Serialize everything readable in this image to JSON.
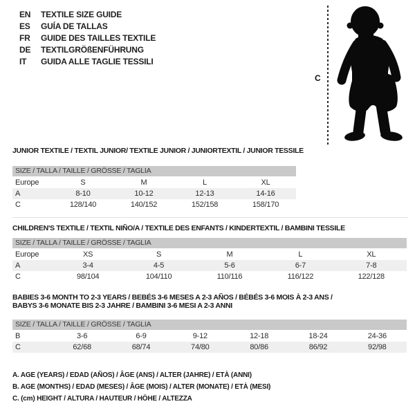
{
  "header": {
    "languages": [
      {
        "code": "EN",
        "title": "TEXTILE SIZE GUIDE"
      },
      {
        "code": "ES",
        "title": "GUÍA DE TALLAS"
      },
      {
        "code": "FR",
        "title": "GUIDE DES TAILLES TEXTILE"
      },
      {
        "code": "DE",
        "title": "TEXTILGRÖßENFÜHRUNG"
      },
      {
        "code": "IT",
        "title": "GUIDA ALLE TAGLIE TESSILI"
      }
    ]
  },
  "figure": {
    "icon": "baby-silhouette",
    "measure_label": "C"
  },
  "tables": [
    {
      "id": "junior",
      "title_lines": [
        "JUNIOR TEXTILE / TEXTIL JUNIOR/ TEXTILE JUNIOR / JUNIORTEXTIL / JUNIOR TESSILE"
      ],
      "size_header": "SIZE / TALLA / TAILLE / GRÖSSE / TAGLIA",
      "rows": [
        {
          "label": "Europe",
          "shaded": false,
          "values": [
            "S",
            "M",
            "L",
            "XL"
          ]
        },
        {
          "label": "A",
          "shaded": true,
          "values": [
            "8-10",
            "10-12",
            "12-13",
            "14-16"
          ]
        },
        {
          "label": "C",
          "shaded": false,
          "values": [
            "128/140",
            "140/152",
            "152/158",
            "158/170"
          ]
        }
      ]
    },
    {
      "id": "children",
      "title_lines": [
        "CHILDREN'S TEXTILE / TEXTIL NIÑO/A / TEXTILE DES ENFANTS / KINDERTEXTIL / BAMBINI TESSILE"
      ],
      "size_header": "SIZE / TALLA / TAILLE / GRÖSSE / TAGLIA",
      "rows": [
        {
          "label": "Europe",
          "shaded": false,
          "values": [
            "XS",
            "S",
            "M",
            "L",
            "XL"
          ]
        },
        {
          "label": "A",
          "shaded": true,
          "values": [
            "3-4",
            "4-5",
            "5-6",
            "6-7",
            "7-8"
          ]
        },
        {
          "label": "C",
          "shaded": false,
          "values": [
            "98/104",
            "104/110",
            "110/116",
            "116/122",
            "122/128"
          ]
        }
      ]
    },
    {
      "id": "babies",
      "title_lines": [
        "BABIES 3-6 MONTH TO 2-3 YEARS / BEBÉS 3-6 MESES A 2-3 AÑOS / BÉBÉS 3-6 MOIS À 2-3 ANS /",
        "BABYS 3-6 MONATE BIS 2-3 JAHRE / BAMBINI 3-6 MESI A 2-3 ANNI"
      ],
      "size_header": "SIZE / TALLA / TAILLE / GRÖSSE / TAGLIA",
      "rows": [
        {
          "label": "B",
          "shaded": false,
          "values": [
            "3-6",
            "6-9",
            "9-12",
            "12-18",
            "18-24",
            "24-36"
          ]
        },
        {
          "label": "C",
          "shaded": true,
          "values": [
            "62/68",
            "68/74",
            "74/80",
            "80/86",
            "86/92",
            "92/98"
          ]
        }
      ]
    }
  ],
  "legend": [
    "A. AGE (YEARS) / EDAD (AÑOS) / ÂGE (ANS) / ALTER (JAHRE) / ETÀ (ANNI)",
    "B. AGE (MONTHS) / EDAD (MESES) / ÂGE (MOIS) / ALTER (MONATE) / ETÀ (MESI)",
    "C. (cm) HEIGHT / ALTURA / HAUTEUR / HÖHE / ALTEZZA"
  ],
  "colors": {
    "header_bar": "#c9c9c9",
    "row_shade": "#efefef",
    "silhouette": "#0a0a0a",
    "text": "#1f1f1f"
  }
}
